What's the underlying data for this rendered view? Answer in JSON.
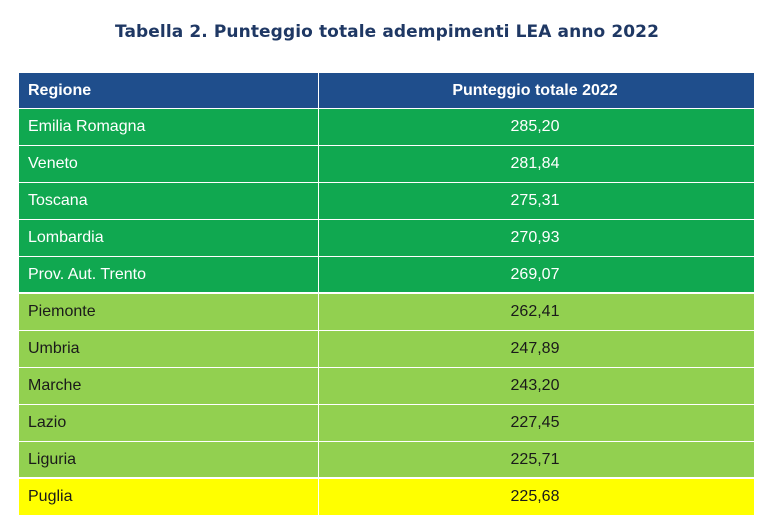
{
  "title": "Tabella 2.  Punteggio totale adempimenti LEA anno 2022",
  "table": {
    "headers": [
      "Regione",
      "Punteggio totale 2022"
    ],
    "rows": [
      {
        "region": "Emilia Romagna",
        "score": "285,20",
        "color": "#10a850"
      },
      {
        "region": "Veneto",
        "score": "281,84",
        "color": "#10a850"
      },
      {
        "region": "Toscana",
        "score": "275,31",
        "color": "#10a850"
      },
      {
        "region": "Lombardia",
        "score": "270,93",
        "color": "#10a850"
      },
      {
        "region": "Prov. Aut. Trento",
        "score": "269,07",
        "color": "#10a850"
      },
      {
        "region": "Piemonte",
        "score": "262,41",
        "color": "#92d050"
      },
      {
        "region": "Umbria",
        "score": "247,89",
        "color": "#92d050"
      },
      {
        "region": "Marche",
        "score": "243,20",
        "color": "#92d050"
      },
      {
        "region": "Lazio",
        "score": "227,45",
        "color": "#92d050"
      },
      {
        "region": "Liguria",
        "score": "225,71",
        "color": "#92d050"
      },
      {
        "region": "Puglia",
        "score": "225,68",
        "color": "#ffff00"
      }
    ]
  },
  "colors": {
    "header": "#1f4e8c",
    "title": "#1f3864"
  }
}
